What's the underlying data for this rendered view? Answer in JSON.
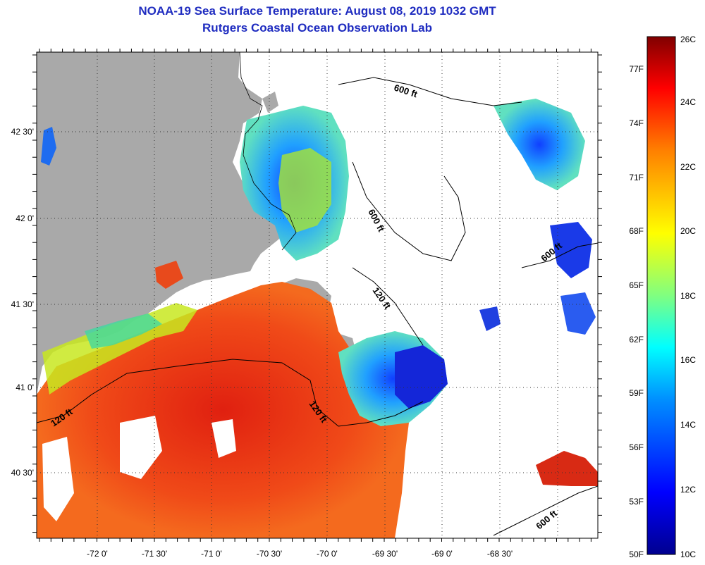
{
  "header": {
    "title_line1": "NOAA-19 Sea Surface Temperature:  August 08, 2019 1032 GMT",
    "title_line2": "Rutgers Coastal Ocean Observation Lab"
  },
  "map": {
    "x_tick_labels": [
      "-72 0'",
      "-71 30'",
      "-71 0'",
      "-70 30'",
      "-70 0'",
      "-69 30'",
      "-69 0'",
      "-68 30'"
    ],
    "y_tick_labels": [
      "42 30'",
      "42 0'",
      "41 30'",
      "41 0'",
      "40 30'"
    ],
    "contour_labels": [
      "600 ft",
      "600 ft",
      "600 ft",
      "600 ft",
      "120 ft",
      "120 ft",
      "120 ft"
    ]
  },
  "colorbar": {
    "celsius_labels": [
      "26C",
      "24C",
      "22C",
      "20C",
      "18C",
      "16C",
      "14C",
      "12C",
      "10C"
    ],
    "fahrenheit_labels": [
      "77F",
      "74F",
      "71F",
      "68F",
      "65F",
      "62F",
      "59F",
      "56F",
      "53F",
      "50F"
    ]
  },
  "colors": {
    "title": "#1f2cc0",
    "land": "#a9a9a9",
    "warm": "#e8361a",
    "cold": "#1a2ee0"
  }
}
